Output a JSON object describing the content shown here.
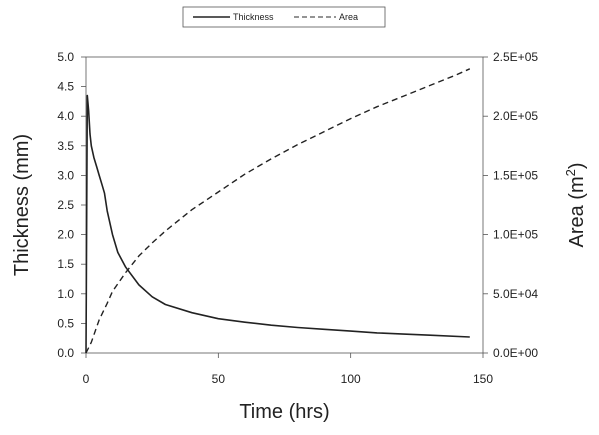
{
  "chart_data": {
    "type": "line",
    "xlabel": "Time (hrs)",
    "ylabel_left": "Thickness (mm)",
    "ylabel_right_base": "Area (m",
    "ylabel_right_sup": "2",
    "ylabel_right_tail": ")",
    "xlim": [
      0,
      150
    ],
    "ylim_left": [
      0,
      5
    ],
    "ylim_right": [
      0,
      250000
    ],
    "x_ticks": [
      "0",
      "50",
      "100",
      "150"
    ],
    "y_left_ticks": [
      "0.0",
      "0.5",
      "1.0",
      "1.5",
      "2.0",
      "2.5",
      "3.0",
      "3.5",
      "4.0",
      "4.5",
      "5.0"
    ],
    "y_right_ticks": [
      "0.0E+00",
      "5.0E+04",
      "1.0E+05",
      "1.5E+05",
      "2.0E+05",
      "2.5E+05"
    ],
    "grid": false,
    "legend_position": "top-center",
    "series": [
      {
        "name": "Thickness",
        "axis": "left",
        "style": "solid",
        "color": "#222222",
        "x": [
          0,
          0.5,
          1,
          1.5,
          2,
          3,
          4,
          5,
          6,
          7,
          8,
          10,
          12,
          15,
          20,
          25,
          30,
          40,
          50,
          60,
          70,
          80,
          90,
          100,
          110,
          120,
          130,
          145
        ],
        "y": [
          0.0,
          4.35,
          4.1,
          3.7,
          3.5,
          3.3,
          3.15,
          3.0,
          2.85,
          2.7,
          2.4,
          2.0,
          1.7,
          1.45,
          1.15,
          0.95,
          0.82,
          0.68,
          0.58,
          0.52,
          0.47,
          0.43,
          0.4,
          0.37,
          0.34,
          0.32,
          0.3,
          0.27
        ]
      },
      {
        "name": "Area",
        "axis": "right",
        "style": "dashed",
        "color": "#222222",
        "x": [
          0,
          2,
          5,
          8,
          10,
          15,
          20,
          25,
          30,
          40,
          50,
          60,
          70,
          80,
          90,
          100,
          110,
          120,
          130,
          140,
          145
        ],
        "y": [
          0,
          9000,
          28000,
          42000,
          52000,
          68000,
          82000,
          93000,
          103000,
          121000,
          136000,
          151000,
          164000,
          176000,
          187000,
          198000,
          208000,
          217000,
          226000,
          235000,
          240000
        ]
      }
    ]
  }
}
